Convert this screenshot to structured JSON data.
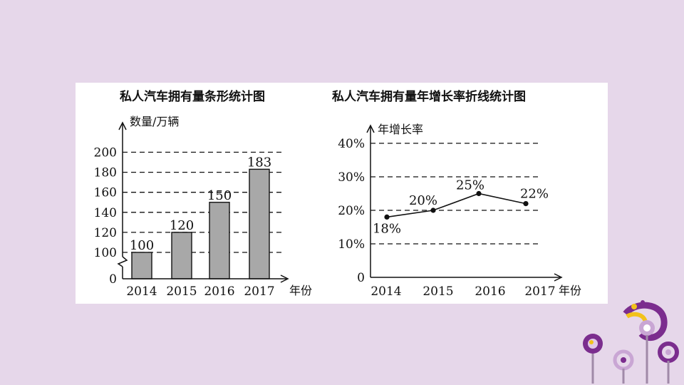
{
  "chart_data": [
    {
      "type": "bar",
      "title": "私人汽车拥有量条形统计图",
      "ylabel": "数量/万辆",
      "xlabel": "年份",
      "categories": [
        "2014",
        "2015",
        "2016",
        "2017"
      ],
      "values": [
        100,
        120,
        150,
        183
      ],
      "data_labels": [
        "100",
        "120",
        "150",
        "183"
      ],
      "yticks": [
        "0",
        "100",
        "120",
        "140",
        "160",
        "180",
        "200"
      ],
      "ylim": [
        0,
        200
      ],
      "axis_break": true,
      "grid": true,
      "bar_color": "#a8a8a8"
    },
    {
      "type": "line",
      "title": "私人汽车拥有量年增长率折线统计图",
      "ylabel": "年增长率",
      "xlabel": "年份",
      "categories": [
        "2014",
        "2015",
        "2016",
        "2017"
      ],
      "values": [
        18,
        20,
        25,
        22
      ],
      "data_labels": [
        "18%",
        "20%",
        "25%",
        "22%"
      ],
      "yticks": [
        "0",
        "10%",
        "20%",
        "30%",
        "40%"
      ],
      "ylim": [
        0,
        40
      ],
      "grid": true
    }
  ],
  "colors": {
    "background": "#e6d7ea",
    "panel": "#ffffff",
    "decor_purple": "#7b2d8e",
    "decor_yellow": "#f2c21b"
  }
}
